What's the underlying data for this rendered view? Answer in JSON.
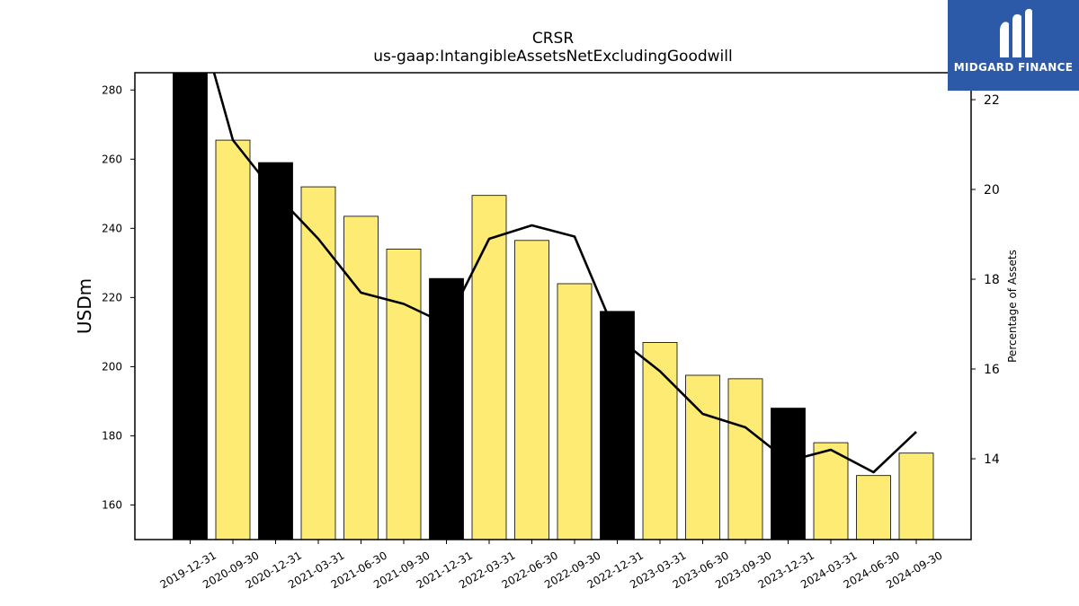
{
  "brand": {
    "name": "MIDGARD FINANCE",
    "background": "#2c5aa8"
  },
  "chart_data": {
    "type": "bar",
    "title": "CRSR",
    "subtitle": "us-gaap:IntangibleAssetsNetExcludingGoodwill",
    "ylabel": "USDm",
    "y2label": "Percentage of Assets",
    "ylim": [
      150,
      285
    ],
    "y2lim": [
      12.2,
      22.6
    ],
    "yticks": [
      160,
      180,
      200,
      220,
      240,
      260,
      280
    ],
    "y2ticks": [
      14,
      16,
      18,
      20,
      22
    ],
    "grid": false,
    "categories": [
      "2019-12-31",
      "2020-09-30",
      "2020-12-31",
      "2021-03-31",
      "2021-06-30",
      "2021-09-30",
      "2021-12-31",
      "2022-03-31",
      "2022-06-30",
      "2022-09-30",
      "2022-12-31",
      "2023-03-31",
      "2023-06-30",
      "2023-09-30",
      "2023-12-31",
      "2024-03-31",
      "2024-06-30",
      "2024-09-30"
    ],
    "series": [
      {
        "type": "bar",
        "axis": "left",
        "values": [
          286,
          265.5,
          259,
          252,
          243.5,
          234,
          225.5,
          249.5,
          236.5,
          224,
          216,
          207,
          197.5,
          196.5,
          188,
          178,
          168.5,
          175
        ],
        "colors": [
          "#000000",
          "#fdeb74",
          "#000000",
          "#fdeb74",
          "#fdeb74",
          "#fdeb74",
          "#000000",
          "#fdeb74",
          "#fdeb74",
          "#fdeb74",
          "#000000",
          "#fdeb74",
          "#fdeb74",
          "#fdeb74",
          "#000000",
          "#fdeb74",
          "#fdeb74",
          "#fdeb74"
        ]
      },
      {
        "type": "line",
        "axis": "right",
        "color": "#000000",
        "values": [
          24.5,
          21.1,
          19.9,
          18.9,
          17.7,
          17.45,
          17.0,
          18.9,
          19.2,
          18.95,
          16.7,
          15.95,
          15.0,
          14.7,
          13.95,
          14.2,
          13.7,
          14.6
        ]
      }
    ]
  }
}
